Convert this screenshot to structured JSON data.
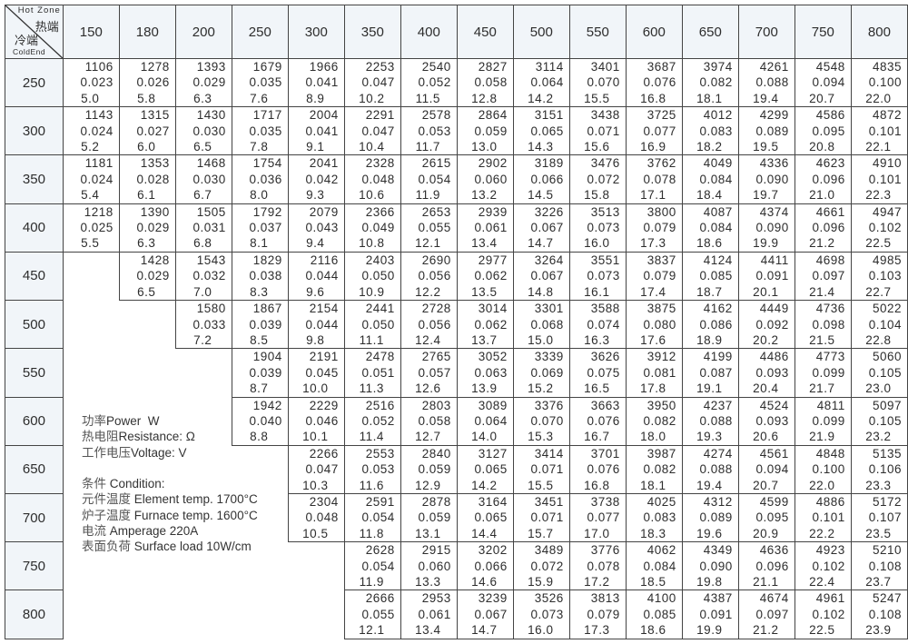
{
  "table": {
    "corner": {
      "hot_en": "Hot Zone",
      "hot_cn": "热端",
      "cold_cn": "冷端",
      "cold_en": "ColdEnd"
    },
    "hot_zone": [
      "150",
      "180",
      "200",
      "250",
      "300",
      "350",
      "400",
      "450",
      "500",
      "550",
      "600",
      "650",
      "700",
      "750",
      "800"
    ],
    "rows": [
      {
        "cold_end": "250",
        "cells": [
          [
            "1106",
            "0.023",
            "5.0"
          ],
          [
            "1278",
            "0.026",
            "5.8"
          ],
          [
            "1393",
            "0.029",
            "6.3"
          ],
          [
            "1679",
            "0.035",
            "7.6"
          ],
          [
            "1966",
            "0.041",
            "8.9"
          ],
          [
            "2253",
            "0.047",
            "10.2"
          ],
          [
            "2540",
            "0.052",
            "11.5"
          ],
          [
            "2827",
            "0.058",
            "12.8"
          ],
          [
            "3114",
            "0.064",
            "14.2"
          ],
          [
            "3401",
            "0.070",
            "15.5"
          ],
          [
            "3687",
            "0.076",
            "16.8"
          ],
          [
            "3974",
            "0.082",
            "18.1"
          ],
          [
            "4261",
            "0.088",
            "19.4"
          ],
          [
            "4548",
            "0.094",
            "20.7"
          ],
          [
            "4835",
            "0.100",
            "22.0"
          ]
        ]
      },
      {
        "cold_end": "300",
        "cells": [
          [
            "1143",
            "0.024",
            "5.2"
          ],
          [
            "1315",
            "0.027",
            "6.0"
          ],
          [
            "1430",
            "0.030",
            "6.5"
          ],
          [
            "1717",
            "0.035",
            "7.8"
          ],
          [
            "2004",
            "0.041",
            "9.1"
          ],
          [
            "2291",
            "0.047",
            "10.4"
          ],
          [
            "2578",
            "0.053",
            "11.7"
          ],
          [
            "2864",
            "0.059",
            "13.0"
          ],
          [
            "3151",
            "0.065",
            "14.3"
          ],
          [
            "3438",
            "0.071",
            "15.6"
          ],
          [
            "3725",
            "0.077",
            "16.9"
          ],
          [
            "4012",
            "0.083",
            "18.2"
          ],
          [
            "4299",
            "0.089",
            "19.5"
          ],
          [
            "4586",
            "0.095",
            "20.8"
          ],
          [
            "4872",
            "0.101",
            "22.1"
          ]
        ]
      },
      {
        "cold_end": "350",
        "cells": [
          [
            "1181",
            "0.024",
            "5.4"
          ],
          [
            "1353",
            "0.028",
            "6.1"
          ],
          [
            "1468",
            "0.030",
            "6.7"
          ],
          [
            "1754",
            "0.036",
            "8.0"
          ],
          [
            "2041",
            "0.042",
            "9.3"
          ],
          [
            "2328",
            "0.048",
            "10.6"
          ],
          [
            "2615",
            "0.054",
            "11.9"
          ],
          [
            "2902",
            "0.060",
            "13.2"
          ],
          [
            "3189",
            "0.066",
            "14.5"
          ],
          [
            "3476",
            "0.072",
            "15.8"
          ],
          [
            "3762",
            "0.078",
            "17.1"
          ],
          [
            "4049",
            "0.084",
            "18.4"
          ],
          [
            "4336",
            "0.090",
            "19.7"
          ],
          [
            "4623",
            "0.096",
            "21.0"
          ],
          [
            "4910",
            "0.101",
            "22.3"
          ]
        ]
      },
      {
        "cold_end": "400",
        "cells": [
          [
            "1218",
            "0.025",
            "5.5"
          ],
          [
            "1390",
            "0.029",
            "6.3"
          ],
          [
            "1505",
            "0.031",
            "6.8"
          ],
          [
            "1792",
            "0.037",
            "8.1"
          ],
          [
            "2079",
            "0.043",
            "9.4"
          ],
          [
            "2366",
            "0.049",
            "10.8"
          ],
          [
            "2653",
            "0.055",
            "12.1"
          ],
          [
            "2939",
            "0.061",
            "13.4"
          ],
          [
            "3226",
            "0.067",
            "14.7"
          ],
          [
            "3513",
            "0.073",
            "16.0"
          ],
          [
            "3800",
            "0.079",
            "17.3"
          ],
          [
            "4087",
            "0.084",
            "18.6"
          ],
          [
            "4374",
            "0.090",
            "19.9"
          ],
          [
            "4661",
            "0.096",
            "21.2"
          ],
          [
            "4947",
            "0.102",
            "22.5"
          ]
        ]
      },
      {
        "cold_end": "450",
        "cells": [
          null,
          [
            "1428",
            "0.029",
            "6.5"
          ],
          [
            "1543",
            "0.032",
            "7.0"
          ],
          [
            "1829",
            "0.038",
            "8.3"
          ],
          [
            "2116",
            "0.044",
            "9.6"
          ],
          [
            "2403",
            "0.050",
            "10.9"
          ],
          [
            "2690",
            "0.056",
            "12.2"
          ],
          [
            "2977",
            "0.062",
            "13.5"
          ],
          [
            "3264",
            "0.067",
            "14.8"
          ],
          [
            "3551",
            "0.073",
            "16.1"
          ],
          [
            "3837",
            "0.079",
            "17.4"
          ],
          [
            "4124",
            "0.085",
            "18.7"
          ],
          [
            "4411",
            "0.091",
            "20.1"
          ],
          [
            "4698",
            "0.097",
            "21.4"
          ],
          [
            "4985",
            "0.103",
            "22.7"
          ]
        ]
      },
      {
        "cold_end": "500",
        "cells": [
          null,
          null,
          [
            "1580",
            "0.033",
            "7.2"
          ],
          [
            "1867",
            "0.039",
            "8.5"
          ],
          [
            "2154",
            "0.044",
            "9.8"
          ],
          [
            "2441",
            "0.050",
            "11.1"
          ],
          [
            "2728",
            "0.056",
            "12.4"
          ],
          [
            "3014",
            "0.062",
            "13.7"
          ],
          [
            "3301",
            "0.068",
            "15.0"
          ],
          [
            "3588",
            "0.074",
            "16.3"
          ],
          [
            "3875",
            "0.080",
            "17.6"
          ],
          [
            "4162",
            "0.086",
            "18.9"
          ],
          [
            "4449",
            "0.092",
            "20.2"
          ],
          [
            "4736",
            "0.098",
            "21.5"
          ],
          [
            "5022",
            "0.104",
            "22.8"
          ]
        ]
      },
      {
        "cold_end": "550",
        "cells": [
          null,
          null,
          null,
          [
            "1904",
            "0.039",
            "8.7"
          ],
          [
            "2191",
            "0.045",
            "10.0"
          ],
          [
            "2478",
            "0.051",
            "11.3"
          ],
          [
            "2765",
            "0.057",
            "12.6"
          ],
          [
            "3052",
            "0.063",
            "13.9"
          ],
          [
            "3339",
            "0.069",
            "15.2"
          ],
          [
            "3626",
            "0.075",
            "16.5"
          ],
          [
            "3912",
            "0.081",
            "17.8"
          ],
          [
            "4199",
            "0.087",
            "19.1"
          ],
          [
            "4486",
            "0.093",
            "20.4"
          ],
          [
            "4773",
            "0.099",
            "21.7"
          ],
          [
            "5060",
            "0.105",
            "23.0"
          ]
        ]
      },
      {
        "cold_end": "600",
        "cells": [
          null,
          null,
          null,
          [
            "1942",
            "0.040",
            "8.8"
          ],
          [
            "2229",
            "0.046",
            "10.1"
          ],
          [
            "2516",
            "0.052",
            "11.4"
          ],
          [
            "2803",
            "0.058",
            "12.7"
          ],
          [
            "3089",
            "0.064",
            "14.0"
          ],
          [
            "3376",
            "0.070",
            "15.3"
          ],
          [
            "3663",
            "0.076",
            "16.7"
          ],
          [
            "3950",
            "0.082",
            "18.0"
          ],
          [
            "4237",
            "0.088",
            "19.3"
          ],
          [
            "4524",
            "0.093",
            "20.6"
          ],
          [
            "4811",
            "0.099",
            "21.9"
          ],
          [
            "5097",
            "0.105",
            "23.2"
          ]
        ]
      },
      {
        "cold_end": "650",
        "cells": [
          null,
          null,
          null,
          null,
          [
            "2266",
            "0.047",
            "10.3"
          ],
          [
            "2553",
            "0.053",
            "11.6"
          ],
          [
            "2840",
            "0.059",
            "12.9"
          ],
          [
            "3127",
            "0.065",
            "14.2"
          ],
          [
            "3414",
            "0.071",
            "15.5"
          ],
          [
            "3701",
            "0.076",
            "16.8"
          ],
          [
            "3987",
            "0.082",
            "18.1"
          ],
          [
            "4274",
            "0.088",
            "19.4"
          ],
          [
            "4561",
            "0.094",
            "20.7"
          ],
          [
            "4848",
            "0.100",
            "22.0"
          ],
          [
            "5135",
            "0.106",
            "23.3"
          ]
        ]
      },
      {
        "cold_end": "700",
        "cells": [
          null,
          null,
          null,
          null,
          [
            "2304",
            "0.048",
            "10.5"
          ],
          [
            "2591",
            "0.054",
            "11.8"
          ],
          [
            "2878",
            "0.059",
            "13.1"
          ],
          [
            "3164",
            "0.065",
            "14.4"
          ],
          [
            "3451",
            "0.071",
            "15.7"
          ],
          [
            "3738",
            "0.077",
            "17.0"
          ],
          [
            "4025",
            "0.083",
            "18.3"
          ],
          [
            "4312",
            "0.089",
            "19.6"
          ],
          [
            "4599",
            "0.095",
            "20.9"
          ],
          [
            "4886",
            "0.101",
            "22.2"
          ],
          [
            "5172",
            "0.107",
            "23.5"
          ]
        ]
      },
      {
        "cold_end": "750",
        "cells": [
          null,
          null,
          null,
          null,
          null,
          [
            "2628",
            "0.054",
            "11.9"
          ],
          [
            "2915",
            "0.060",
            "13.3"
          ],
          [
            "3202",
            "0.066",
            "14.6"
          ],
          [
            "3489",
            "0.072",
            "15.9"
          ],
          [
            "3776",
            "0.078",
            "17.2"
          ],
          [
            "4062",
            "0.084",
            "18.5"
          ],
          [
            "4349",
            "0.090",
            "19.8"
          ],
          [
            "4636",
            "0.096",
            "21.1"
          ],
          [
            "4923",
            "0.102",
            "22.4"
          ],
          [
            "5210",
            "0.108",
            "23.7"
          ]
        ]
      },
      {
        "cold_end": "800",
        "cells": [
          null,
          null,
          null,
          null,
          null,
          [
            "2666",
            "0.055",
            "12.1"
          ],
          [
            "2953",
            "0.061",
            "13.4"
          ],
          [
            "3239",
            "0.067",
            "14.7"
          ],
          [
            "3526",
            "0.073",
            "16.0"
          ],
          [
            "3813",
            "0.079",
            "17.3"
          ],
          [
            "4100",
            "0.085",
            "18.6"
          ],
          [
            "4387",
            "0.091",
            "19.9"
          ],
          [
            "4674",
            "0.097",
            "21.2"
          ],
          [
            "4961",
            "0.102",
            "22.5"
          ],
          [
            "5247",
            "0.108",
            "23.9"
          ]
        ]
      }
    ]
  },
  "legend": {
    "lines": [
      {
        "cn": "功率",
        "en": "Power  W"
      },
      {
        "cn": "热电阻",
        "en": "Resistance: Ω"
      },
      {
        "cn": "工作电压",
        "en": "Voltage: V"
      },
      {
        "cn": "",
        "en": ""
      },
      {
        "cn": "条件",
        "en": " Condition:"
      },
      {
        "cn": "元件温度",
        "en": " Element temp. 1700°C"
      },
      {
        "cn": "炉子温度",
        "en": " Furnace temp. 1600°C"
      },
      {
        "cn": "电流",
        "en": " Amperage 220A"
      },
      {
        "cn": "表面负荷",
        "en": " Surface load 10W/cm"
      }
    ]
  }
}
